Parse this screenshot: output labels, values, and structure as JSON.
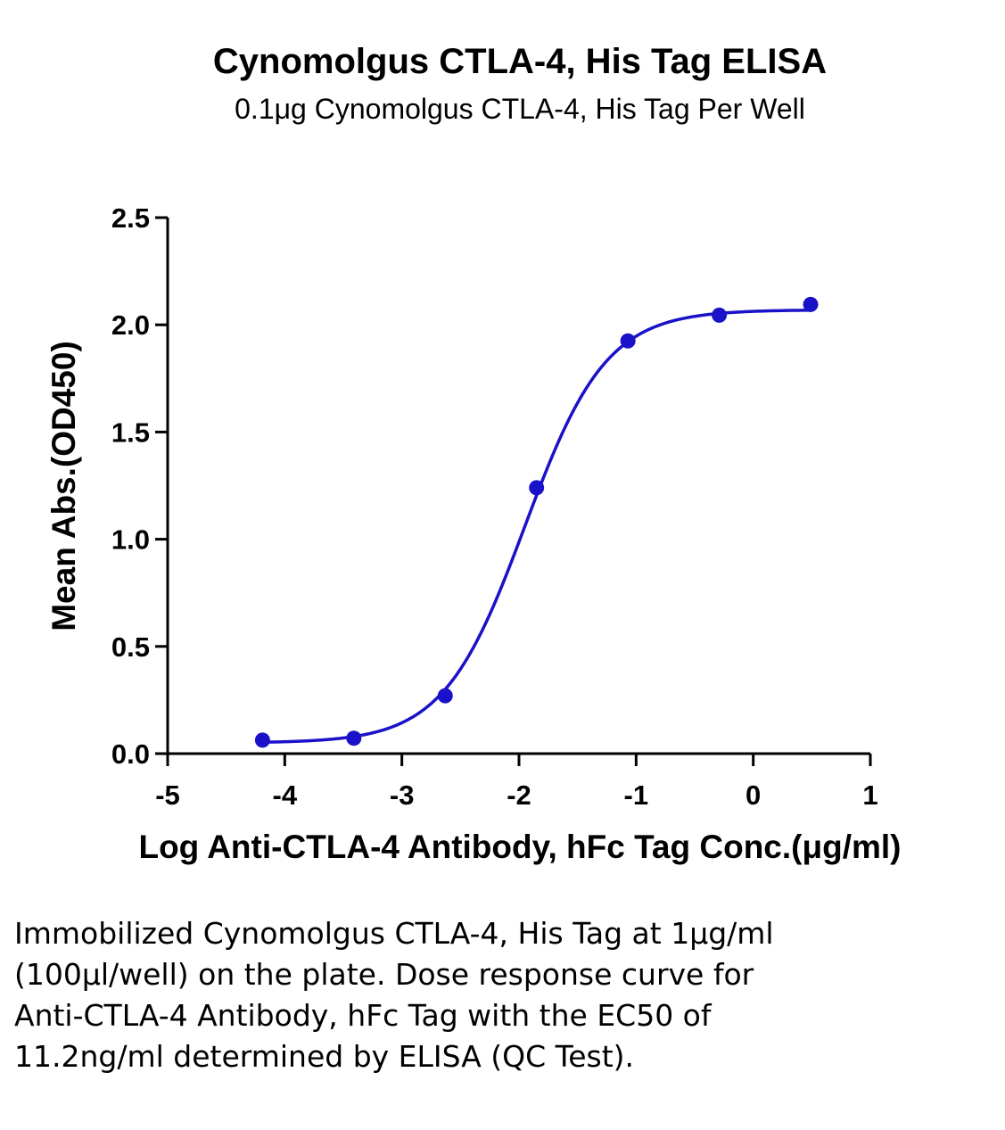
{
  "chart_data": {
    "type": "scatter",
    "title": "Cynomolgus CTLA-4, His Tag ELISA",
    "subtitle": "0.1μg Cynomolgus CTLA-4, His Tag Per Well",
    "xlabel": "Log Anti-CTLA-4 Antibody, hFc Tag Conc.(μg/ml)",
    "ylabel": "Mean Abs.(OD450)",
    "xlim": [
      -5,
      1
    ],
    "ylim": [
      0,
      2.5
    ],
    "xticks": [
      "-5",
      "-4",
      "-3",
      "-2",
      "-1",
      "0",
      "1"
    ],
    "yticks": [
      "0.0",
      "0.5",
      "1.0",
      "1.5",
      "2.0",
      "2.5"
    ],
    "grid": false,
    "series": [
      {
        "color": "#1a12c8",
        "x": [
          -4.19,
          -3.41,
          -2.63,
          -1.85,
          -1.07,
          -0.29,
          0.49
        ],
        "y": [
          0.063,
          0.072,
          0.27,
          1.24,
          1.925,
          2.045,
          2.095
        ],
        "fit": {
          "model": "4PL",
          "bottom": 0.05,
          "top": 2.07,
          "logEC50": -1.95,
          "hill": 1.25,
          "range": [
            -4.19,
            0.49
          ]
        }
      }
    ]
  },
  "caption": "Immobilized Cynomolgus CTLA-4, His Tag at 1μg/ml (100μl/well) on the plate. Dose response curve for Anti-CTLA-4 Antibody, hFc Tag with the EC50 of 11.2ng/ml determined by ELISA (QC Test)."
}
